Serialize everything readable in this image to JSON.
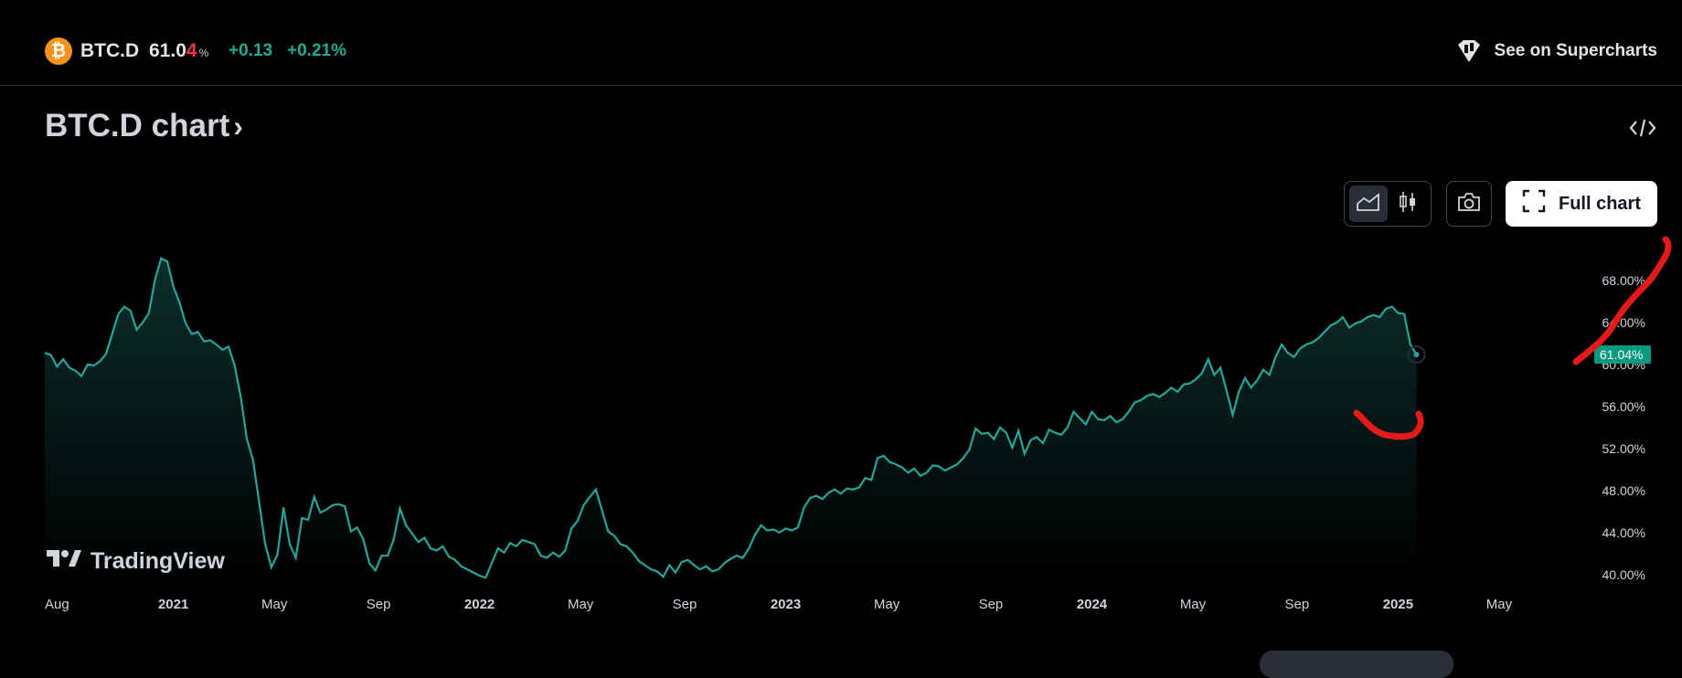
{
  "header": {
    "ticker": "BTC.D",
    "price_main": "61.0",
    "price_last_digit": "4",
    "price_unit": "%",
    "change": "+0.13",
    "change_pct": "+0.21%",
    "supercharts_label": "See on Supercharts",
    "coin_icon_glyph": "₿"
  },
  "title": {
    "text": "BTC.D chart",
    "chevron": "›"
  },
  "toolbar": {
    "full_chart_label": "Full chart",
    "active_style": "area"
  },
  "branding": {
    "logo_text": "TradingView"
  },
  "colors": {
    "line": "#26a69a",
    "positive": "#22ab94",
    "negative": "#f23645",
    "current_label_bg": "#089981",
    "annotation": "#e21a1a"
  },
  "chart_data": {
    "type": "area",
    "title": "BTC.D chart",
    "ylim": [
      39.5,
      70.5
    ],
    "y_ticks": [
      "68.00%",
      "64.00%",
      "60.00%",
      "56.00%",
      "52.00%",
      "48.00%",
      "44.00%",
      "40.00%"
    ],
    "y_tick_values": [
      68,
      64,
      60,
      56,
      52,
      48,
      44,
      40
    ],
    "x_labels": [
      {
        "label": "Aug",
        "t": 2020.58,
        "bold": false
      },
      {
        "label": "2021",
        "t": 2021.0,
        "bold": true
      },
      {
        "label": "May",
        "t": 2021.33,
        "bold": false
      },
      {
        "label": "Sep",
        "t": 2021.67,
        "bold": false
      },
      {
        "label": "2022",
        "t": 2022.0,
        "bold": true
      },
      {
        "label": "May",
        "t": 2022.33,
        "bold": false
      },
      {
        "label": "Sep",
        "t": 2022.67,
        "bold": false
      },
      {
        "label": "2023",
        "t": 2023.0,
        "bold": true
      },
      {
        "label": "May",
        "t": 2023.33,
        "bold": false
      },
      {
        "label": "Sep",
        "t": 2023.67,
        "bold": false
      },
      {
        "label": "2024",
        "t": 2024.0,
        "bold": true
      },
      {
        "label": "May",
        "t": 2024.33,
        "bold": false
      },
      {
        "label": "Sep",
        "t": 2024.67,
        "bold": false
      },
      {
        "label": "2025",
        "t": 2025.0,
        "bold": true
      },
      {
        "label": "May",
        "t": 2025.33,
        "bold": false
      }
    ],
    "xlim": [
      2020.58,
      2025.59
    ],
    "current_value": 61.04,
    "current_label": "61.04%",
    "grid": false,
    "series": [
      {
        "points": [
          [
            2020.58,
            61.2
          ],
          [
            2020.6,
            61.0
          ],
          [
            2020.62,
            59.9
          ],
          [
            2020.64,
            60.6
          ],
          [
            2020.66,
            59.8
          ],
          [
            2020.68,
            59.5
          ],
          [
            2020.7,
            59.0
          ],
          [
            2020.72,
            60.1
          ],
          [
            2020.74,
            60.0
          ],
          [
            2020.76,
            60.4
          ],
          [
            2020.78,
            61.1
          ],
          [
            2020.8,
            63.0
          ],
          [
            2020.82,
            64.9
          ],
          [
            2020.84,
            65.6
          ],
          [
            2020.86,
            65.2
          ],
          [
            2020.88,
            63.4
          ],
          [
            2020.9,
            64.1
          ],
          [
            2020.92,
            65.0
          ],
          [
            2020.94,
            68.2
          ],
          [
            2020.96,
            70.2
          ],
          [
            2020.98,
            69.9
          ],
          [
            2021.0,
            67.5
          ],
          [
            2021.02,
            66.0
          ],
          [
            2021.04,
            64.0
          ],
          [
            2021.06,
            63.0
          ],
          [
            2021.08,
            63.2
          ],
          [
            2021.1,
            62.3
          ],
          [
            2021.12,
            62.4
          ],
          [
            2021.14,
            62.0
          ],
          [
            2021.16,
            61.5
          ],
          [
            2021.18,
            61.8
          ],
          [
            2021.2,
            60.0
          ],
          [
            2021.22,
            57.0
          ],
          [
            2021.24,
            53.0
          ],
          [
            2021.26,
            51.0
          ],
          [
            2021.28,
            47.0
          ],
          [
            2021.3,
            43.0
          ],
          [
            2021.32,
            40.8
          ],
          [
            2021.34,
            42.0
          ],
          [
            2021.36,
            46.5
          ],
          [
            2021.38,
            43.0
          ],
          [
            2021.4,
            41.7
          ],
          [
            2021.42,
            45.5
          ],
          [
            2021.44,
            45.3
          ],
          [
            2021.46,
            47.5
          ],
          [
            2021.48,
            46.0
          ],
          [
            2021.5,
            46.3
          ],
          [
            2021.52,
            46.7
          ],
          [
            2021.54,
            46.8
          ],
          [
            2021.56,
            46.6
          ],
          [
            2021.58,
            44.2
          ],
          [
            2021.6,
            44.6
          ],
          [
            2021.62,
            43.5
          ],
          [
            2021.64,
            41.2
          ],
          [
            2021.66,
            40.5
          ],
          [
            2021.68,
            41.9
          ],
          [
            2021.7,
            41.9
          ],
          [
            2021.72,
            43.5
          ],
          [
            2021.74,
            46.4
          ],
          [
            2021.76,
            44.8
          ],
          [
            2021.78,
            44.0
          ],
          [
            2021.8,
            43.2
          ],
          [
            2021.82,
            43.6
          ],
          [
            2021.84,
            42.6
          ],
          [
            2021.86,
            42.4
          ],
          [
            2021.88,
            42.8
          ],
          [
            2021.9,
            41.8
          ],
          [
            2021.92,
            41.5
          ],
          [
            2021.94,
            40.9
          ],
          [
            2021.96,
            40.6
          ],
          [
            2021.98,
            40.3
          ],
          [
            2022.0,
            40.0
          ],
          [
            2022.02,
            39.8
          ],
          [
            2022.04,
            41.2
          ],
          [
            2022.06,
            42.6
          ],
          [
            2022.08,
            42.2
          ],
          [
            2022.1,
            43.1
          ],
          [
            2022.12,
            42.8
          ],
          [
            2022.14,
            43.4
          ],
          [
            2022.16,
            43.2
          ],
          [
            2022.18,
            43.0
          ],
          [
            2022.2,
            41.9
          ],
          [
            2022.22,
            41.7
          ],
          [
            2022.24,
            42.2
          ],
          [
            2022.26,
            41.8
          ],
          [
            2022.28,
            42.4
          ],
          [
            2022.3,
            44.5
          ],
          [
            2022.32,
            45.2
          ],
          [
            2022.34,
            46.7
          ],
          [
            2022.36,
            47.5
          ],
          [
            2022.38,
            48.2
          ],
          [
            2022.4,
            46.2
          ],
          [
            2022.42,
            44.2
          ],
          [
            2022.44,
            43.8
          ],
          [
            2022.46,
            43.0
          ],
          [
            2022.48,
            42.8
          ],
          [
            2022.5,
            42.2
          ],
          [
            2022.52,
            41.4
          ],
          [
            2022.54,
            41.0
          ],
          [
            2022.56,
            40.6
          ],
          [
            2022.58,
            40.4
          ],
          [
            2022.6,
            39.9
          ],
          [
            2022.62,
            41.0
          ],
          [
            2022.64,
            40.3
          ],
          [
            2022.66,
            41.3
          ],
          [
            2022.68,
            41.5
          ],
          [
            2022.7,
            41.0
          ],
          [
            2022.72,
            40.6
          ],
          [
            2022.74,
            40.9
          ],
          [
            2022.76,
            40.4
          ],
          [
            2022.78,
            40.6
          ],
          [
            2022.8,
            41.2
          ],
          [
            2022.82,
            41.6
          ],
          [
            2022.84,
            41.9
          ],
          [
            2022.86,
            41.7
          ],
          [
            2022.88,
            42.6
          ],
          [
            2022.9,
            43.9
          ],
          [
            2022.92,
            44.8
          ],
          [
            2022.94,
            44.3
          ],
          [
            2022.96,
            44.4
          ],
          [
            2022.98,
            44.1
          ],
          [
            2023.0,
            44.5
          ],
          [
            2023.02,
            44.3
          ],
          [
            2023.04,
            44.6
          ],
          [
            2023.06,
            46.5
          ],
          [
            2023.08,
            47.4
          ],
          [
            2023.1,
            47.6
          ],
          [
            2023.12,
            47.3
          ],
          [
            2023.14,
            47.9
          ],
          [
            2023.16,
            48.2
          ],
          [
            2023.18,
            47.8
          ],
          [
            2023.2,
            48.3
          ],
          [
            2023.22,
            48.2
          ],
          [
            2023.24,
            48.4
          ],
          [
            2023.26,
            49.3
          ],
          [
            2023.28,
            49.1
          ],
          [
            2023.3,
            51.2
          ],
          [
            2023.32,
            51.4
          ],
          [
            2023.34,
            50.8
          ],
          [
            2023.36,
            50.6
          ],
          [
            2023.38,
            50.3
          ],
          [
            2023.4,
            49.8
          ],
          [
            2023.42,
            50.2
          ],
          [
            2023.44,
            49.5
          ],
          [
            2023.46,
            49.8
          ],
          [
            2023.48,
            50.5
          ],
          [
            2023.5,
            50.4
          ],
          [
            2023.52,
            50.0
          ],
          [
            2023.54,
            50.3
          ],
          [
            2023.56,
            50.6
          ],
          [
            2023.58,
            51.2
          ],
          [
            2023.6,
            52.0
          ],
          [
            2023.62,
            54.0
          ],
          [
            2023.64,
            53.5
          ],
          [
            2023.66,
            53.6
          ],
          [
            2023.68,
            53.0
          ],
          [
            2023.7,
            54.1
          ],
          [
            2023.72,
            53.6
          ],
          [
            2023.74,
            52.2
          ],
          [
            2023.76,
            53.8
          ],
          [
            2023.78,
            51.6
          ],
          [
            2023.8,
            52.9
          ],
          [
            2023.82,
            53.2
          ],
          [
            2023.84,
            52.6
          ],
          [
            2023.86,
            53.9
          ],
          [
            2023.88,
            53.6
          ],
          [
            2023.9,
            53.4
          ],
          [
            2023.92,
            54.1
          ],
          [
            2023.94,
            55.6
          ],
          [
            2023.96,
            55.0
          ],
          [
            2023.98,
            54.4
          ],
          [
            2024.0,
            55.6
          ],
          [
            2024.02,
            54.9
          ],
          [
            2024.04,
            54.8
          ],
          [
            2024.06,
            55.2
          ],
          [
            2024.08,
            54.6
          ],
          [
            2024.1,
            54.9
          ],
          [
            2024.12,
            55.6
          ],
          [
            2024.14,
            56.5
          ],
          [
            2024.16,
            56.7
          ],
          [
            2024.18,
            57.1
          ],
          [
            2024.2,
            57.3
          ],
          [
            2024.22,
            57.0
          ],
          [
            2024.24,
            57.4
          ],
          [
            2024.26,
            57.9
          ],
          [
            2024.28,
            57.5
          ],
          [
            2024.3,
            58.2
          ],
          [
            2024.32,
            58.3
          ],
          [
            2024.34,
            58.7
          ],
          [
            2024.36,
            59.3
          ],
          [
            2024.38,
            60.6
          ],
          [
            2024.4,
            59.1
          ],
          [
            2024.42,
            59.8
          ],
          [
            2024.44,
            57.6
          ],
          [
            2024.46,
            55.3
          ],
          [
            2024.48,
            57.5
          ],
          [
            2024.5,
            58.8
          ],
          [
            2024.52,
            57.9
          ],
          [
            2024.54,
            58.6
          ],
          [
            2024.56,
            59.6
          ],
          [
            2024.58,
            59.1
          ],
          [
            2024.6,
            60.8
          ],
          [
            2024.62,
            62.0
          ],
          [
            2024.64,
            61.2
          ],
          [
            2024.66,
            60.8
          ],
          [
            2024.68,
            61.6
          ],
          [
            2024.7,
            62.0
          ],
          [
            2024.72,
            62.2
          ],
          [
            2024.74,
            62.6
          ],
          [
            2024.76,
            63.2
          ],
          [
            2024.78,
            63.8
          ],
          [
            2024.8,
            64.1
          ],
          [
            2024.82,
            64.6
          ],
          [
            2024.84,
            63.6
          ],
          [
            2024.86,
            64.0
          ],
          [
            2024.88,
            64.2
          ],
          [
            2024.9,
            64.6
          ],
          [
            2024.92,
            64.8
          ],
          [
            2024.94,
            64.6
          ],
          [
            2024.96,
            65.4
          ],
          [
            2024.98,
            65.6
          ],
          [
            2025.0,
            65.0
          ],
          [
            2025.02,
            64.9
          ],
          [
            2025.04,
            62.0
          ],
          [
            2025.06,
            61.04
          ]
        ]
      }
    ]
  }
}
